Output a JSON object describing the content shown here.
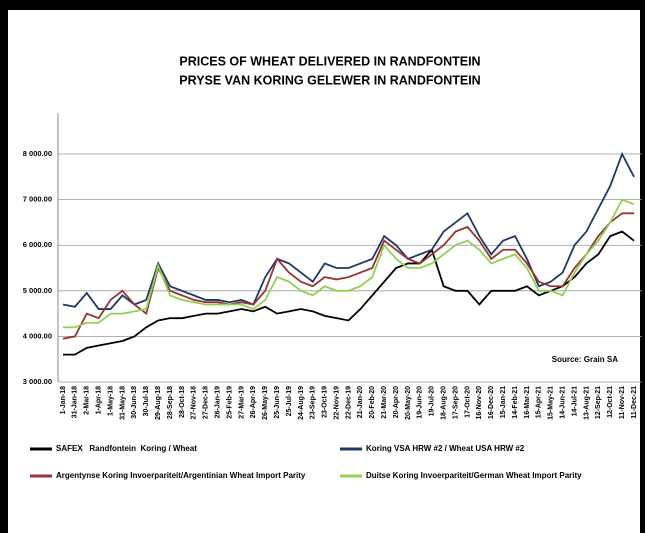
{
  "chart_data": {
    "type": "line",
    "title": "PRICES OF WHEAT DELIVERED IN RANDFONTEIN",
    "subtitle": "PRYSE VAN KORING GELEWER IN RANDFONTEIN",
    "annotation": "Source: Grain SA",
    "categories": [
      "1-Jan-18",
      "31-Jan-18",
      "2-Mar-18",
      "1-Apr-18",
      "1-May-18",
      "31-May-18",
      "30-Jun-18",
      "30-Jul-18",
      "29-Aug-18",
      "28-Sep-18",
      "28-Oct-18",
      "27-Nov-18",
      "27-Dec-18",
      "26-Jan-19",
      "25-Feb-19",
      "27-Mar-19",
      "26-Apr-19",
      "26-May-19",
      "25-Jun-19",
      "25-Jul-19",
      "24-Aug-19",
      "23-Sep-19",
      "23-Oct-19",
      "22-Nov-19",
      "22-Dec-19",
      "21-Jan-20",
      "20-Feb-20",
      "21-Mar-20",
      "20-Apr-20",
      "20-May-20",
      "19-Jun-20",
      "19-Jul-20",
      "18-Aug-20",
      "17-Sep-20",
      "17-Oct-20",
      "16-Nov-20",
      "16-Dec-20",
      "15-Jan-21",
      "14-Feb-21",
      "16-Mar-21",
      "15-Apr-21",
      "15-May-21",
      "14-Jun-21",
      "14-Jul-21",
      "13-Aug-21",
      "12-Sep-21",
      "12-Oct-21",
      "11-Nov-21",
      "11-Dec-21"
    ],
    "series": [
      {
        "name": "SAFEX   Randfontein  Koring / Wheat",
        "color": "#000000",
        "values": [
          3600,
          3600,
          3750,
          3800,
          3850,
          3900,
          4000,
          4200,
          4350,
          4400,
          4400,
          4450,
          4500,
          4500,
          4550,
          4600,
          4550,
          4650,
          4500,
          4550,
          4600,
          4550,
          4450,
          4400,
          4350,
          4600,
          4900,
          5200,
          5500,
          5600,
          5600,
          5900,
          5100,
          5000,
          5000,
          4700,
          5000,
          5000,
          5000,
          5100,
          4900,
          5000,
          5100,
          5300,
          5600,
          5800,
          6200,
          6300,
          6100
        ]
      },
      {
        "name": "Koring VSA HRW #2 / Wheat USA HRW #2",
        "color": "#1f3864",
        "values": [
          4700,
          4650,
          4950,
          4600,
          4600,
          4900,
          4700,
          4800,
          5600,
          5100,
          5000,
          4900,
          4800,
          4800,
          4750,
          4800,
          4700,
          5300,
          5700,
          5600,
          5400,
          5200,
          5600,
          5500,
          5500,
          5600,
          5700,
          6200,
          6000,
          5700,
          5800,
          5900,
          6300,
          6500,
          6700,
          6200,
          5800,
          6100,
          6200,
          5700,
          5100,
          5200,
          5400,
          6000,
          6300,
          6800,
          7300,
          8000,
          7500
        ]
      },
      {
        "name": "Argentynse Koring Invoerpariteit/Argentinian Wheat Import Parity",
        "color": "#943634",
        "values": [
          3950,
          4000,
          4500,
          4400,
          4800,
          5000,
          4700,
          4500,
          5500,
          5000,
          4900,
          4800,
          4750,
          4750,
          4700,
          4750,
          4700,
          5000,
          5700,
          5400,
          5200,
          5100,
          5300,
          5250,
          5300,
          5400,
          5500,
          6100,
          5900,
          5700,
          5600,
          5800,
          6000,
          6300,
          6400,
          6100,
          5700,
          5900,
          5900,
          5600,
          5200,
          5100,
          5100,
          5500,
          5800,
          6200,
          6500,
          6700,
          6700
        ]
      },
      {
        "name": "Duitse Koring Invoerpariteit/German Wheat Import Parity",
        "color": "#92d050",
        "values": [
          4200,
          4200,
          4300,
          4300,
          4500,
          4500,
          4550,
          4600,
          5550,
          4900,
          4800,
          4750,
          4700,
          4700,
          4700,
          4700,
          4600,
          4800,
          5300,
          5200,
          5000,
          4900,
          5100,
          5000,
          5000,
          5100,
          5300,
          6000,
          5700,
          5500,
          5500,
          5600,
          5800,
          6000,
          6100,
          5900,
          5600,
          5700,
          5800,
          5500,
          5000,
          5000,
          4900,
          5400,
          5800,
          6100,
          6500,
          7000,
          6900
        ]
      }
    ],
    "ylim": [
      3000,
      8900
    ],
    "yticks": [
      {
        "value": 3000,
        "label": "3 000.00"
      },
      {
        "value": 4000,
        "label": "4 000.00"
      },
      {
        "value": 5000,
        "label": "5 000.00"
      },
      {
        "value": 6000,
        "label": "6 000.00"
      },
      {
        "value": 7000,
        "label": "7 000.00"
      },
      {
        "value": 8000,
        "label": "8 000.00"
      }
    ],
    "grid": true
  }
}
